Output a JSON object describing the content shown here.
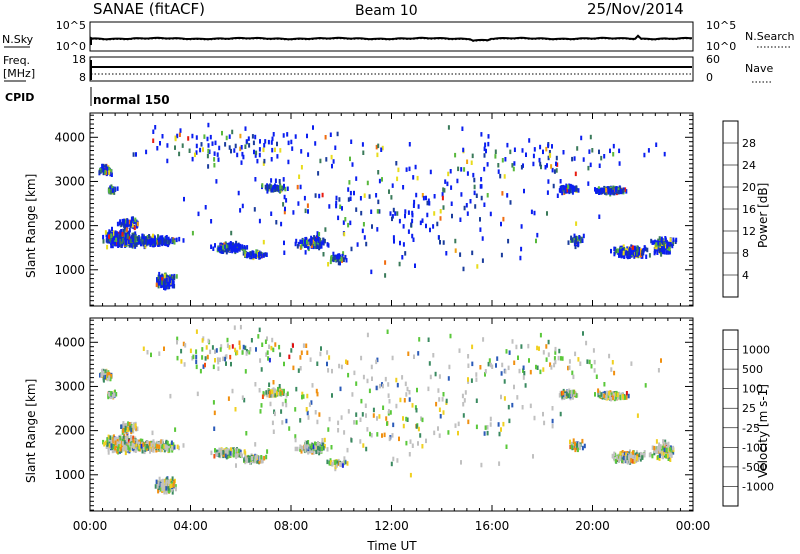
{
  "header": {
    "station": "SANAE (fitACF)",
    "beam": "Beam 10",
    "date": "25/Nov/2014"
  },
  "noise_panel": {
    "left_label": "N.Sky",
    "left_ticks": [
      "10^5",
      "10^0"
    ],
    "right_label": "N.Search",
    "right_ticks": [
      "10^5",
      "10^0"
    ]
  },
  "freq_panel": {
    "left_label": "Freq.",
    "left_unit": "[MHz]",
    "left_ticks": [
      "18",
      "8"
    ],
    "right_label": "Nave",
    "right_ticks": [
      "60",
      "0"
    ]
  },
  "cpid_panel": {
    "label": "CPID",
    "mode": "normal 150"
  },
  "chart_data": [
    {
      "type": "heatmap",
      "name": "power",
      "ylabel": "Slant Range [km]",
      "yticks": [
        1000,
        2000,
        3000,
        4000
      ],
      "ylim": [
        180,
        4550
      ],
      "xlim": [
        0,
        24
      ],
      "colorbar_label": "Power [dB]",
      "colorbar_ticks": [
        "4",
        "8",
        "12",
        "16",
        "20",
        "24",
        "28"
      ],
      "colorbar_colors": [
        "#0a1ef0",
        "#1a3c9c",
        "#3a7a5a",
        "#58b83c",
        "#e8dc1c",
        "#f0a010",
        "#f06c10",
        "#e81c10"
      ]
    },
    {
      "type": "heatmap",
      "name": "velocity",
      "ylabel": "Slant Range [km]",
      "yticks": [
        1000,
        2000,
        3000,
        4000
      ],
      "ylim": [
        180,
        4550
      ],
      "xlim": [
        0,
        24
      ],
      "colorbar_label": "Velocity [m s-1]",
      "colorbar_ticks": [
        "1000",
        "500",
        "100",
        "25",
        "-25",
        "-100",
        "-500",
        "-1000"
      ],
      "colorbar_colors": [
        "#1a2ae0",
        "#2a5ab8",
        "#3a8a60",
        "#5ac83a",
        "#c0c0c0",
        "#f0d020",
        "#f09010",
        "#f05010",
        "#e01010"
      ]
    }
  ],
  "x_axis": {
    "tick_labels": [
      "00:00",
      "04:00",
      "08:00",
      "12:00",
      "16:00",
      "20:00",
      "00:00"
    ],
    "label": "Time UT"
  }
}
